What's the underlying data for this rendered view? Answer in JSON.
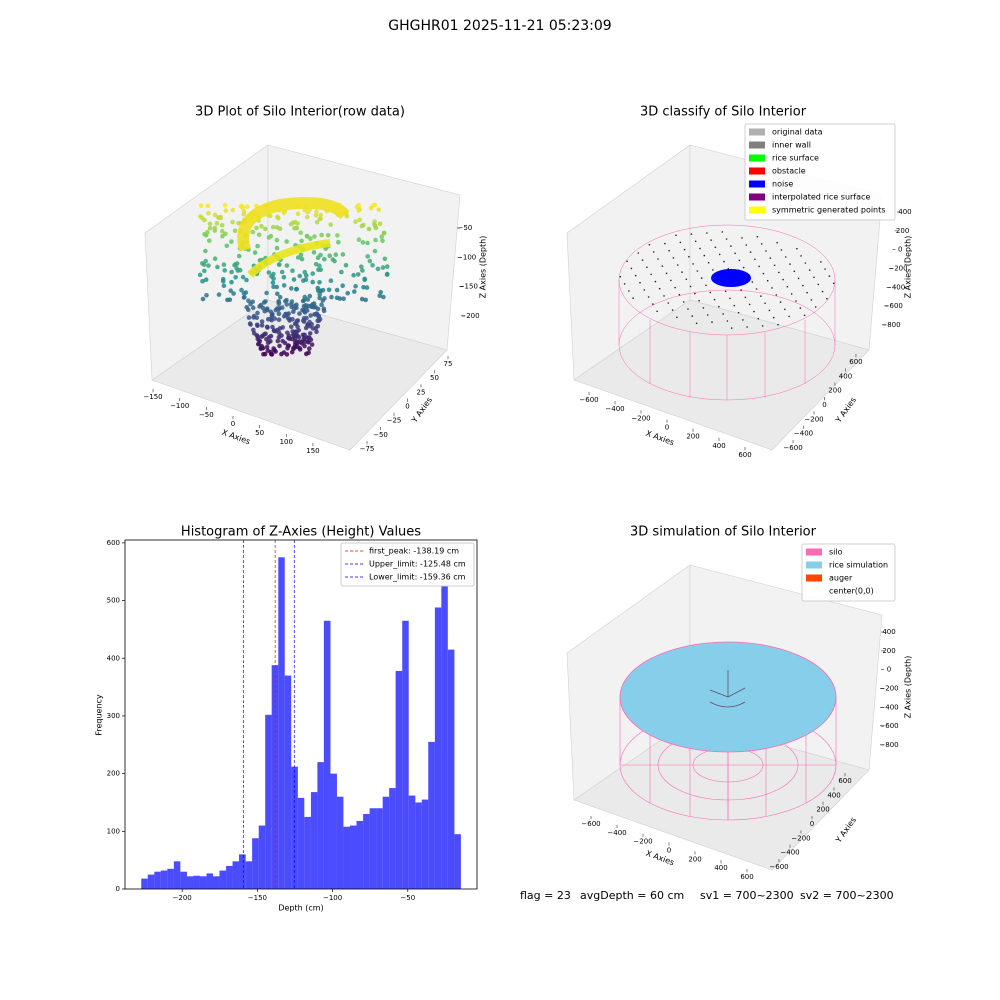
{
  "title": "GHGHR01 2025-11-21 05:23:09",
  "chart_data": [
    {
      "type": "scatter3d",
      "title": "3D Plot of Silo Interior(row data)",
      "xlabel": "X Axies",
      "ylabel": "Y Axies",
      "zlabel": "Z Axies (Depth)",
      "xlim": [
        -160,
        170
      ],
      "ylim": [
        -85,
        85
      ],
      "zlim": [
        -225,
        -35
      ],
      "xticks": [
        {
          "value": -150,
          "label": "−150"
        },
        {
          "value": -100,
          "label": "−100"
        },
        {
          "value": -50,
          "label": "−50"
        },
        0,
        50,
        100,
        150
      ],
      "yticks": [
        {
          "value": -75,
          "label": "−75"
        },
        {
          "value": -50,
          "label": "−50"
        },
        {
          "value": -25,
          "label": "−25"
        },
        0,
        25,
        50,
        75
      ],
      "zticks": [
        {
          "value": -200,
          "label": "−200"
        },
        {
          "value": -150,
          "label": "−150"
        },
        {
          "value": -100,
          "label": "−100"
        },
        {
          "value": -50,
          "label": "−50"
        }
      ]
    },
    {
      "type": "scatter3d",
      "title": "3D classify of Silo Interior",
      "xlabel": "X Axies",
      "ylabel": "Y Axies",
      "zlabel": "Z Axies (Depth)",
      "xlim": [
        -700,
        700
      ],
      "ylim": [
        -700,
        700
      ],
      "zlim": [
        -950,
        550
      ],
      "xticks": [
        {
          "value": -600,
          "label": "−600"
        },
        {
          "value": -400,
          "label": "−400"
        },
        {
          "value": -200,
          "label": "−200"
        },
        0,
        200,
        400,
        600
      ],
      "yticks": [
        {
          "value": -600,
          "label": "−600"
        },
        {
          "value": -400,
          "label": "−400"
        },
        {
          "value": -200,
          "label": "−200"
        },
        0,
        200,
        400,
        600
      ],
      "zticks": [
        {
          "value": -800,
          "label": "−800"
        },
        {
          "value": -600,
          "label": "−600"
        },
        {
          "value": -400,
          "label": "−400"
        },
        {
          "value": -200,
          "label": "−200"
        },
        0,
        200,
        400
      ],
      "legend": [
        {
          "name": "original data",
          "color": "#b0b0b0"
        },
        {
          "name": "inner wall",
          "color": "#808080"
        },
        {
          "name": "rice surface",
          "color": "#00ff00"
        },
        {
          "name": "obstacle",
          "color": "#ff0000"
        },
        {
          "name": "noise",
          "color": "#0000ff"
        },
        {
          "name": "interpolated rice surface",
          "color": "#800080"
        },
        {
          "name": "symmetric generated points",
          "color": "#ffff00"
        }
      ]
    },
    {
      "type": "histogram",
      "title": "Histogram of Z-Axies (Height) Values",
      "xlabel": "Depth (cm)",
      "ylabel": "Frequency",
      "color": "#0000ff",
      "alpha": 0.7,
      "bins": [
        -227.2,
        -222.9,
        -218.5,
        -214.2,
        -209.9,
        -205.5,
        -201.2,
        -196.8,
        -192.5,
        -188.2,
        -183.8,
        -179.5,
        -175.2,
        -170.8,
        -166.5,
        -162.2,
        -157.8,
        -153.5,
        -149.1,
        -144.8,
        -140.5,
        -136.1,
        -131.8,
        -127.5,
        -123.1,
        -118.8,
        -114.4,
        -110.1,
        -105.8,
        -101.4,
        -97.1,
        -92.8,
        -88.4,
        -84.1,
        -79.7,
        -75.4,
        -71.1,
        -66.7,
        -62.4,
        -58.1,
        -53.7,
        -49.4,
        -45.0,
        -40.7,
        -36.4,
        -32.0,
        -27.7,
        -23.4,
        -19.0,
        -14.7
      ],
      "counts": [
        18,
        25,
        30,
        32,
        35,
        48,
        30,
        22,
        23,
        22,
        27,
        22,
        32,
        40,
        48,
        60,
        48,
        88,
        110,
        302,
        388,
        575,
        370,
        212,
        158,
        125,
        168,
        220,
        465,
        200,
        160,
        108,
        110,
        118,
        130,
        140,
        140,
        160,
        175,
        378,
        465,
        162,
        150,
        155,
        255,
        488,
        560,
        415,
        95
      ],
      "xlim": [
        -238,
        -4
      ],
      "ylim": [
        0,
        605
      ],
      "xticks": [
        {
          "value": -200,
          "label": "−200"
        },
        {
          "value": -150,
          "label": "−150"
        },
        {
          "value": -100,
          "label": "−100"
        },
        {
          "value": -50,
          "label": "−50"
        }
      ],
      "yticks": [
        0,
        100,
        200,
        300,
        400,
        500,
        600
      ],
      "lines": [
        {
          "label": "first_peak: -138.19 cm",
          "value": -138.19,
          "color": "#ff0000"
        },
        {
          "label": "Upper_limit: -125.48 cm",
          "value": -125.48,
          "color": "#0000ff"
        },
        {
          "label": "Lower_limit: -159.36 cm",
          "value": -159.36,
          "color": "#0000ff"
        }
      ],
      "legend_position": "upper right"
    },
    {
      "type": "surface3d",
      "title": "3D simulation of Silo Interior",
      "xlabel": "X Axies",
      "ylabel": "Y Axies",
      "zlabel": "Z Axies (Depth)",
      "xlim": [
        -700,
        700
      ],
      "ylim": [
        -700,
        700
      ],
      "zlim": [
        -950,
        550
      ],
      "xticks": [
        {
          "value": -600,
          "label": "−600"
        },
        {
          "value": -400,
          "label": "−400"
        },
        {
          "value": -200,
          "label": "−200"
        },
        0,
        200,
        400,
        600
      ],
      "yticks": [
        {
          "value": -600,
          "label": "−600"
        },
        {
          "value": -400,
          "label": "−400"
        },
        {
          "value": -200,
          "label": "−200"
        },
        0,
        200,
        400,
        600
      ],
      "zticks": [
        {
          "value": -800,
          "label": "−800"
        },
        {
          "value": -600,
          "label": "−600"
        },
        {
          "value": -400,
          "label": "−400"
        },
        {
          "value": -200,
          "label": "−200"
        },
        0,
        200,
        400
      ],
      "legend": [
        {
          "name": "silo",
          "color": "#ff69b4"
        },
        {
          "name": "rice simulation",
          "color": "#87ceeb"
        },
        {
          "name": "auger",
          "color": "#ff4500"
        },
        {
          "name": "center(0,0)",
          "color": "#ffffff"
        }
      ]
    }
  ],
  "footer": [
    "flag = 23",
    "avgDepth = 60 cm",
    "sv1 = 700~2300",
    "sv2 = 700~2300"
  ]
}
